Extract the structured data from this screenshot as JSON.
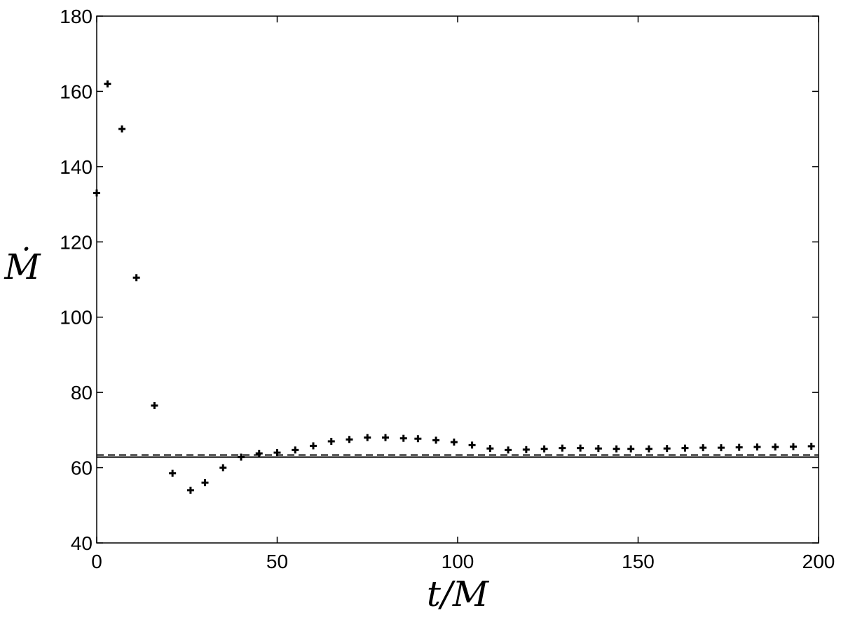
{
  "chart_data": {
    "type": "scatter",
    "title": "",
    "xlabel": "t/M",
    "ylabel": "Ṁ",
    "xlim": [
      0,
      200
    ],
    "ylim": [
      40,
      180
    ],
    "xticks": [
      0,
      50,
      100,
      150,
      200
    ],
    "yticks": [
      40,
      60,
      80,
      100,
      120,
      140,
      160,
      180
    ],
    "grid": false,
    "marker": "plus",
    "series": [
      {
        "x": [
          0,
          3,
          7,
          11,
          16,
          21,
          26,
          30,
          35,
          40,
          45,
          50,
          55,
          60,
          65,
          70,
          75,
          80,
          85,
          89,
          94,
          99,
          104,
          109,
          114,
          119,
          124,
          129,
          134,
          139,
          144,
          148,
          153,
          158,
          163,
          168,
          173,
          178,
          183,
          188,
          193,
          198
        ],
        "y": [
          133,
          162,
          150,
          110.5,
          76.5,
          58.5,
          54,
          56,
          60,
          62.8,
          63.8,
          64,
          64.7,
          65.8,
          67,
          67.5,
          68,
          68,
          67.8,
          67.7,
          67.3,
          66.8,
          66,
          65.1,
          64.7,
          64.8,
          65,
          65.2,
          65.2,
          65.1,
          65,
          65,
          65,
          65.1,
          65.2,
          65.3,
          65.3,
          65.4,
          65.5,
          65.5,
          65.6,
          65.7
        ]
      }
    ],
    "reference_line": {
      "y": 62.8,
      "style": "dashed"
    }
  }
}
